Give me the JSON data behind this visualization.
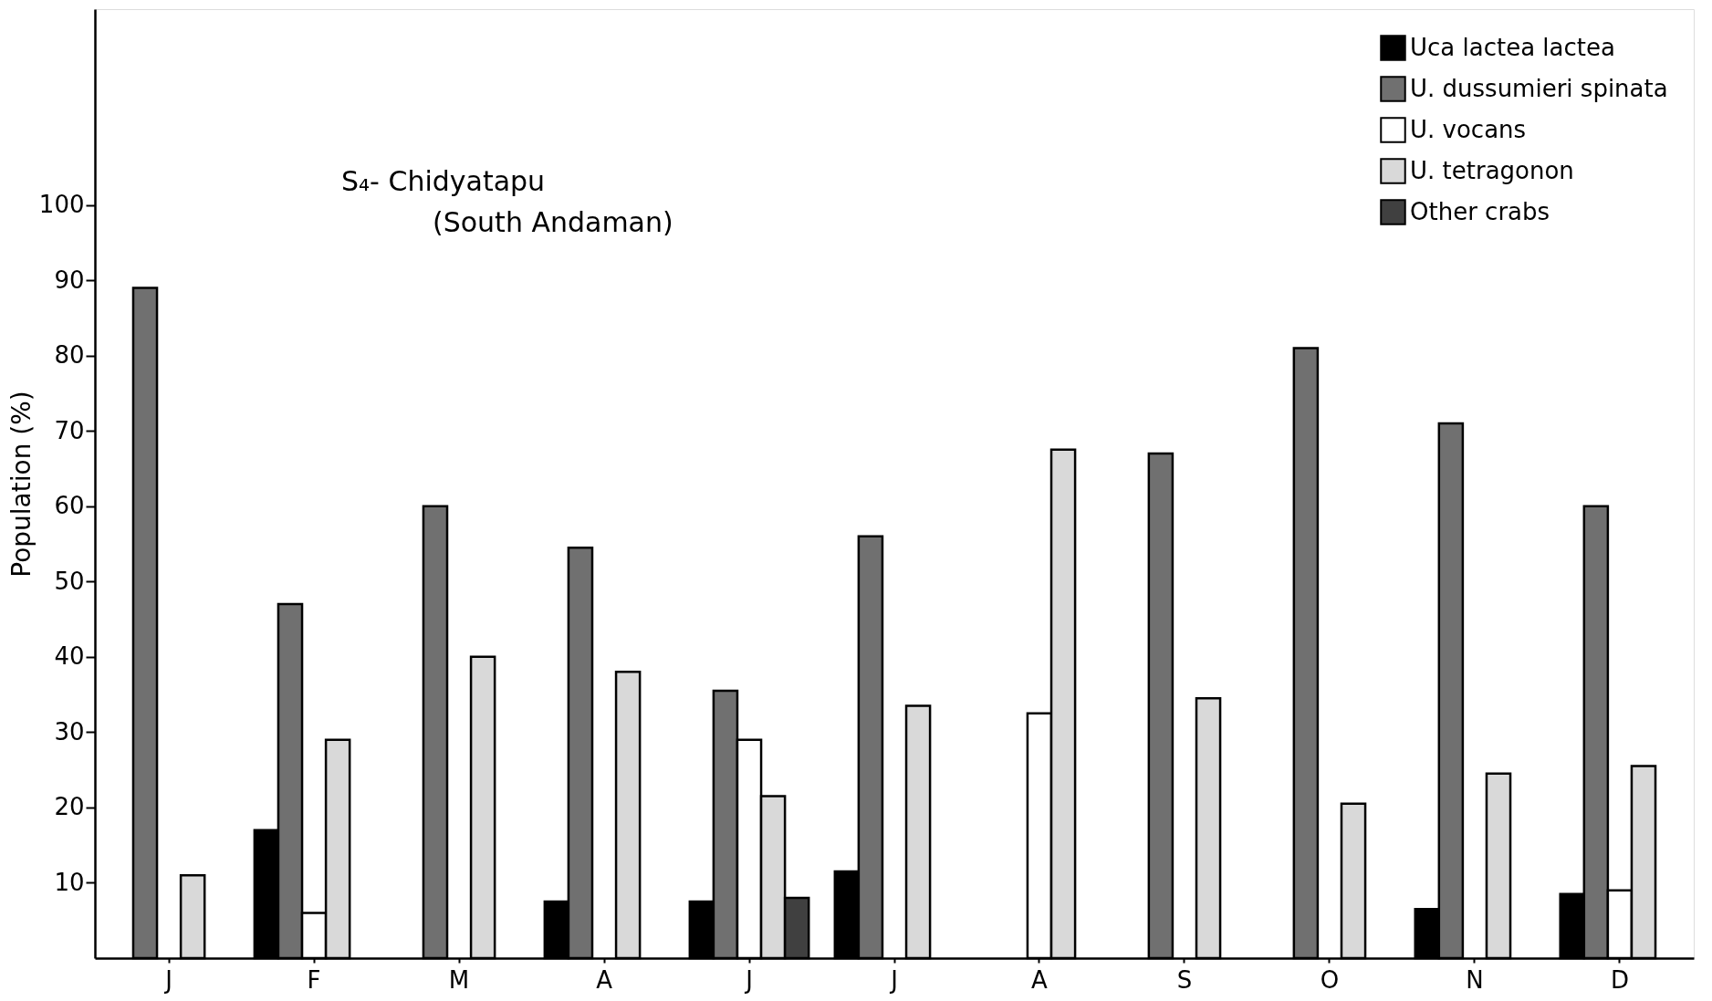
{
  "chart_data": {
    "type": "bar",
    "ylabel": "Population (%)",
    "categories": [
      "J",
      "F",
      "M",
      "A",
      "J",
      "J",
      "A",
      "S",
      "O",
      "N",
      "D"
    ],
    "series": [
      {
        "name": "Uca lactea lactea",
        "color": "#000000",
        "values": [
          null,
          17,
          null,
          7.5,
          7.5,
          11.5,
          null,
          null,
          null,
          6.5,
          8.5
        ]
      },
      {
        "name": "U. dussumieri spinata",
        "color": "#707070",
        "values": [
          89,
          47,
          60,
          54.5,
          35.5,
          56,
          null,
          67,
          81,
          71,
          60
        ]
      },
      {
        "name": "U. vocans",
        "color": "#ffffff",
        "values": [
          null,
          6,
          null,
          null,
          29,
          null,
          32.5,
          null,
          null,
          null,
          9
        ]
      },
      {
        "name": "U. tetragonon",
        "color": "#d9d9d9",
        "values": [
          11,
          29,
          40,
          38,
          21.5,
          33.5,
          67.5,
          34.5,
          20.5,
          24.5,
          25.5
        ]
      },
      {
        "name": "Other crabs",
        "color": "#404040",
        "values": [
          null,
          null,
          null,
          null,
          8,
          null,
          null,
          null,
          null,
          null,
          null
        ]
      }
    ],
    "ylim": [
      0,
      126
    ],
    "yticks": [
      10,
      20,
      30,
      40,
      50,
      60,
      70,
      80,
      90,
      100
    ],
    "grid": false,
    "legend": "top right",
    "annotations": [
      "S₄- Chidyatapu",
      "(South Andaman)"
    ]
  }
}
